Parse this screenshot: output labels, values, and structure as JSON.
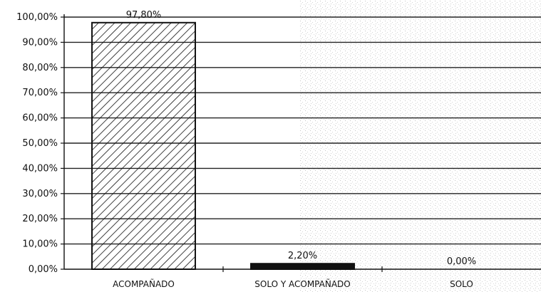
{
  "chart_data": {
    "type": "bar",
    "categories": [
      "ACOMPAÑADO",
      "SOLO Y ACOMPAÑADO",
      "SOLO"
    ],
    "values": [
      97.8,
      2.2,
      0.0
    ],
    "data_labels": [
      "97,80%",
      "2,20%",
      "0,00%"
    ],
    "ylim": [
      0,
      100
    ],
    "yticks": [
      0,
      10,
      20,
      30,
      40,
      50,
      60,
      70,
      80,
      90,
      100
    ],
    "ytick_labels": [
      "0,00%",
      "10,00%",
      "20,00%",
      "30,00%",
      "40,00%",
      "50,00%",
      "60,00%",
      "70,00%",
      "80,00%",
      "90,00%",
      "100,00%"
    ],
    "grid": true,
    "bar_fills": [
      "hatched",
      "solid",
      "none"
    ],
    "title": "",
    "xlabel": "",
    "ylabel": ""
  },
  "colors": {
    "axis": "#111111",
    "grid": "#222222",
    "bar": "#111111",
    "noise": "#b9b9b9"
  }
}
